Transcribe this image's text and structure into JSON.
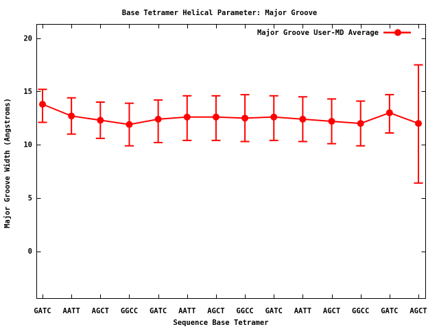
{
  "window": {
    "background": "#ffffff"
  },
  "chart_data": {
    "type": "line",
    "title": "Base Tetramer Helical Parameter: Major Groove",
    "xlabel": "Sequence Base Tetramer",
    "ylabel": "Major Groove Width (Angstroms)",
    "legend": [
      {
        "label": "Major Groove User-MD Average",
        "color": "#ff0000",
        "marker": "filled-circle-with-line"
      }
    ],
    "legend_position": "top-right-inside",
    "categories": [
      "GATC",
      "AATT",
      "AGCT",
      "GGCC",
      "GATC",
      "AATT",
      "AGCT",
      "GGCC",
      "GATC",
      "AATT",
      "AGCT",
      "GGCC",
      "GATC",
      "AGCT"
    ],
    "series": [
      {
        "name": "Major Groove User-MD Average",
        "values": [
          13.8,
          12.7,
          12.3,
          11.9,
          12.4,
          12.6,
          12.6,
          12.5,
          12.6,
          12.4,
          12.2,
          12.0,
          13.0,
          12.0
        ],
        "err_high": [
          15.2,
          14.4,
          14.0,
          13.9,
          14.2,
          14.6,
          14.6,
          14.7,
          14.6,
          14.5,
          14.3,
          14.1,
          14.7,
          17.5
        ],
        "err_low": [
          12.1,
          11.0,
          10.6,
          9.9,
          10.2,
          10.4,
          10.4,
          10.3,
          10.4,
          10.3,
          10.1,
          9.9,
          11.1,
          6.4
        ]
      }
    ],
    "yticks": [
      0,
      5,
      10,
      15,
      20
    ],
    "ylim": [
      -4.5,
      21.3
    ],
    "grid": false,
    "error_bars": true,
    "colors": {
      "series": "#ff0000",
      "text": "#000000",
      "frame": "#000000",
      "background": "#ffffff"
    }
  }
}
